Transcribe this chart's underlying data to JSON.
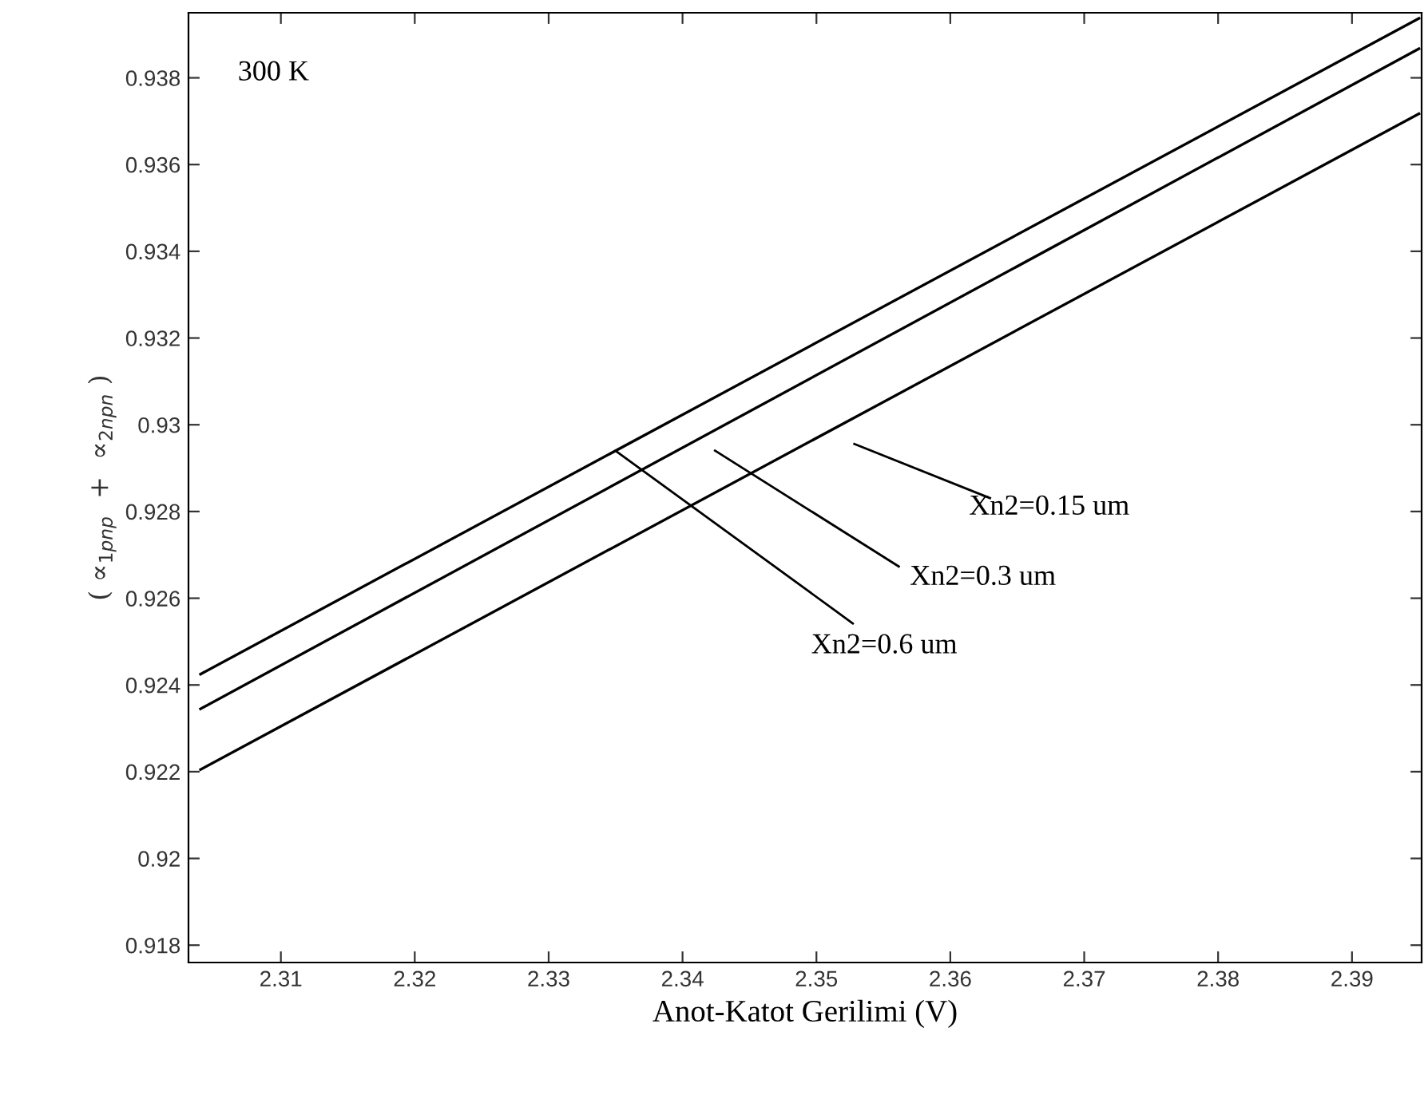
{
  "chart_data": {
    "type": "line",
    "xlabel": "Anot-Katot Gerilimi (V)",
    "ylabel": "( ∝$_{1pnp}$  +  ∝$_{2npn}$ )",
    "x": [
      2.304,
      2.395
    ],
    "xlim": [
      2.3031,
      2.3952
    ],
    "ylim": [
      0.9176,
      0.9395
    ],
    "xticks": [
      2.31,
      2.32,
      2.33,
      2.34,
      2.35,
      2.36,
      2.37,
      2.38,
      2.39
    ],
    "yticks": [
      0.918,
      0.92,
      0.922,
      0.924,
      0.926,
      0.928,
      0.93,
      0.932,
      0.934,
      0.936,
      0.938
    ],
    "grid": false,
    "legend": false,
    "marker": "none",
    "line_style": "solid",
    "series": [
      {
        "color": "#000000",
        "values": [
          0.92425,
          0.93937
        ]
      },
      {
        "color": "#000000",
        "values": [
          0.92345,
          0.93867
        ]
      },
      {
        "color": "#000000",
        "values": [
          0.92205,
          0.93717
        ]
      }
    ],
    "annotations": [
      "300 K",
      "Xn2=0.15 um",
      "Xn2=0.3 um",
      {
        "text": "Xn2=0.6 um",
        "x": 2.335,
        "y": 0.9294
      }
    ]
  }
}
